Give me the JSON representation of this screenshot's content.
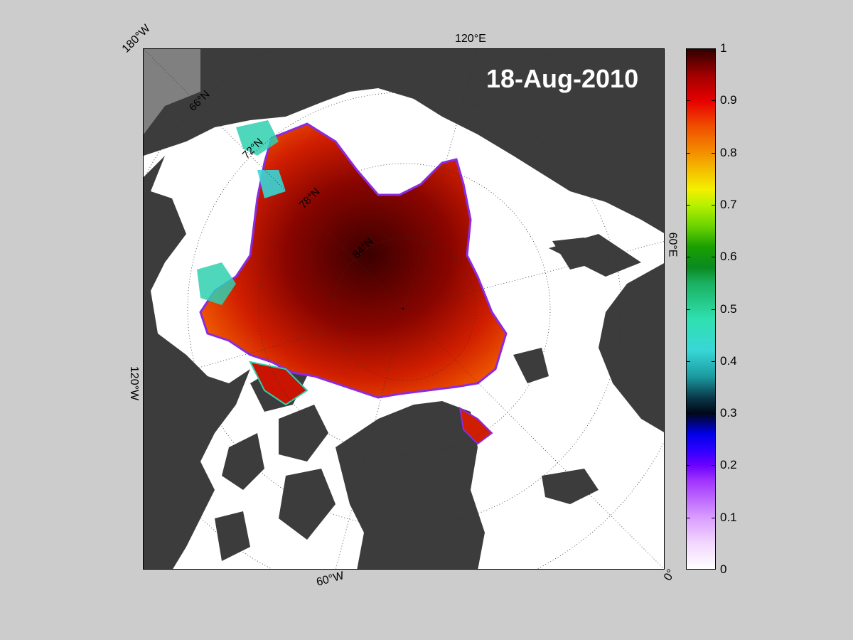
{
  "date_label": "18-Aug-2010",
  "edge_labels": {
    "lon_180w": "180°W",
    "lon_120e": "120°E",
    "lon_60e": "60°E",
    "lon_120w": "120°W",
    "lon_60w": "60°W",
    "lon_0": "0°"
  },
  "lat_labels": {
    "lat66": "66°N",
    "lat72": "72°N",
    "lat78": "78°N",
    "lat84": "84°N"
  },
  "colorbar": {
    "ticks": [
      "0",
      "0.1",
      "0.2",
      "0.3",
      "0.4",
      "0.5",
      "0.6",
      "0.7",
      "0.8",
      "0.9",
      "1"
    ]
  },
  "colors": {
    "background": "#cccccc",
    "land": "#3c3c3c",
    "ocean": "#ffffff",
    "ice_core": "#3a0000",
    "ice_high": "#c81400",
    "ice_edge": "#e85a00"
  }
}
